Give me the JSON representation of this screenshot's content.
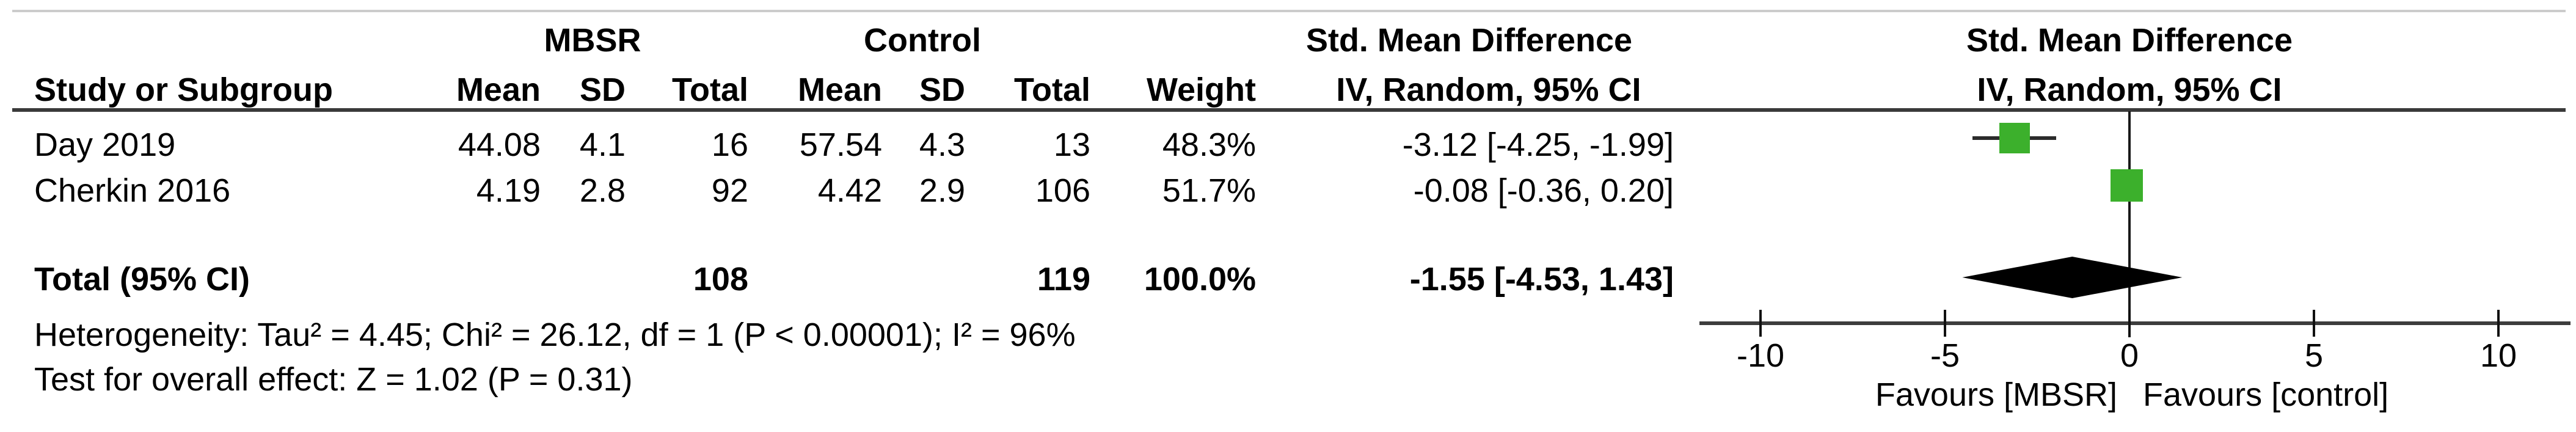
{
  "table": {
    "group_headers": {
      "mbsr": "MBSR",
      "control": "Control",
      "smd_left": "Std. Mean Difference",
      "smd_right": "Std. Mean Difference"
    },
    "col_headers": {
      "study": "Study or Subgroup",
      "mean1": "Mean",
      "sd1": "SD",
      "total1": "Total",
      "mean2": "Mean",
      "sd2": "SD",
      "total2": "Total",
      "weight": "Weight",
      "iv_left": "IV, Random, 95% CI",
      "iv_right": "IV, Random, 95% CI"
    },
    "rows": [
      {
        "study": "Day 2019",
        "mean1": "44.08",
        "sd1": "4.1",
        "total1": "16",
        "mean2": "57.54",
        "sd2": "4.3",
        "total2": "13",
        "weight": "48.3%",
        "ci": "-3.12 [-4.25, -1.99]"
      },
      {
        "study": "Cherkin 2016",
        "mean1": "4.19",
        "sd1": "2.8",
        "total1": "92",
        "mean2": "4.42",
        "sd2": "2.9",
        "total2": "106",
        "weight": "51.7%",
        "ci": "-0.08 [-0.36, 0.20]"
      }
    ],
    "total_row": {
      "label": "Total (95% CI)",
      "total1": "108",
      "total2": "119",
      "weight": "100.0%",
      "ci": "-1.55 [-4.53, 1.43]"
    },
    "heterogeneity": "Heterogeneity: Tau² = 4.45; Chi² = 26.12, df = 1 (P < 0.00001); I² = 96%",
    "overall_effect": "Test for overall effect: Z = 1.02 (P = 0.31)"
  },
  "chart_data": {
    "type": "forest",
    "effect_measure": "Std. Mean Difference",
    "model": "IV, Random, 95% CI",
    "x_ticks": [
      -10,
      -5,
      0,
      5,
      10
    ],
    "x_tick_labels": [
      "-10",
      "-5",
      "0",
      "5",
      "10"
    ],
    "axis_range_units": [
      -11.6,
      12.0
    ],
    "favours_left": "Favours [MBSR]",
    "favours_right": "Favours [control]",
    "studies": [
      {
        "name": "Day 2019",
        "smd": -3.12,
        "ci_low": -4.25,
        "ci_high": -1.99,
        "weight_pct": 48.3
      },
      {
        "name": "Cherkin 2016",
        "smd": -0.08,
        "ci_low": -0.36,
        "ci_high": 0.2,
        "weight_pct": 51.7
      }
    ],
    "total": {
      "label": "Total (95% CI)",
      "smd": -1.55,
      "ci_low": -4.53,
      "ci_high": 1.43
    },
    "marker_color": "#3cb02c",
    "line_color": "#1a1a1a",
    "grid": false,
    "legend_position": "none"
  }
}
